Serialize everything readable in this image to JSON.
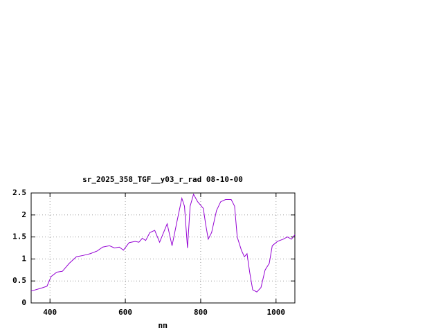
{
  "chart_data": {
    "type": "line",
    "title": "sr_2025_358_TGF__y03_r_rad 08-10-00",
    "x_label": "nm",
    "xlim": [
      350,
      1050
    ],
    "xticks": [
      400,
      600,
      800,
      1000
    ],
    "ylim": [
      0,
      2.5
    ],
    "yticks": [
      0,
      0.5,
      1,
      1.5,
      2,
      2.5
    ],
    "grid": true,
    "series": [
      {
        "color": "#9400d3",
        "x": [
          350,
          378,
          392,
          403,
          418,
          433,
          451,
          470,
          488,
          507,
          525,
          540,
          558,
          571,
          584,
          595,
          610,
          626,
          636,
          645,
          654,
          665,
          678,
          691,
          711,
          724,
          737,
          750,
          757,
          765,
          772,
          781,
          792,
          802,
          807,
          813,
          820,
          829,
          842,
          853,
          866,
          881,
          890,
          897,
          908,
          916,
          923,
          930,
          938,
          949,
          960,
          971,
          982,
          990,
          1004,
          1019,
          1030,
          1041,
          1050
        ],
        "values": [
          0.27,
          0.34,
          0.38,
          0.6,
          0.7,
          0.72,
          0.9,
          1.05,
          1.08,
          1.12,
          1.18,
          1.27,
          1.3,
          1.25,
          1.27,
          1.2,
          1.37,
          1.4,
          1.38,
          1.47,
          1.42,
          1.6,
          1.65,
          1.38,
          1.8,
          1.3,
          1.85,
          2.38,
          2.2,
          1.25,
          2.2,
          2.47,
          2.3,
          2.2,
          2.15,
          1.8,
          1.45,
          1.6,
          2.1,
          2.3,
          2.35,
          2.35,
          2.2,
          1.5,
          1.2,
          1.05,
          1.12,
          0.7,
          0.3,
          0.25,
          0.35,
          0.75,
          0.9,
          1.3,
          1.4,
          1.45,
          1.5,
          1.45,
          1.55
        ]
      }
    ]
  }
}
